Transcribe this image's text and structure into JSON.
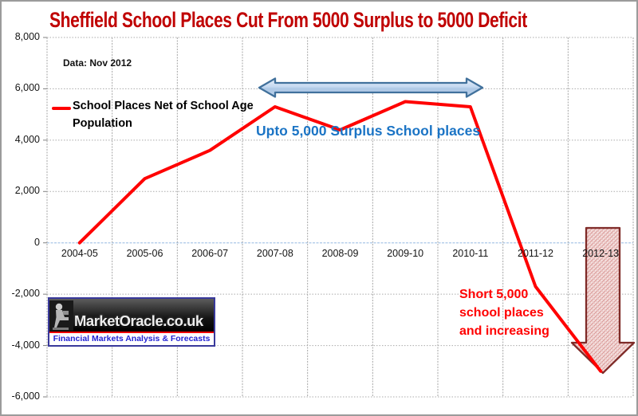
{
  "title": "Sheffield School Places Cut From 5000 Surplus to 5000 Deficit",
  "data_note": "Data: Nov 2012",
  "legend": {
    "series_label": "School Places Net of School Age Population",
    "swatch_color": "#FF0000"
  },
  "annotations": {
    "surplus_label": "Upto 5,000 Surplus School places",
    "surplus_color": "#1B74C5",
    "deficit_label": "Short 5,000\nschool places\nand increasing",
    "deficit_color": "#FF0000"
  },
  "logo": {
    "name": "MarketOracle.co.uk",
    "tagline": "Financial Markets Analysis & Forecasts"
  },
  "colors": {
    "title": "#C00000",
    "series_line": "#FF0000",
    "zero_line": "#A9C6E8",
    "gridline": "#ABABAB",
    "blue_arrow_border": "#41719C",
    "blue_arrow_fill": "#C5D9F1",
    "red_arrow_border": "#7F2B28",
    "red_arrow_fill": "#F5E0DF"
  },
  "chart_data": {
    "type": "line",
    "title": "Sheffield School Places Cut From 5000 Surplus to 5000 Deficit",
    "categories": [
      "2004-05",
      "2005-06",
      "2006-07",
      "2007-08",
      "2008-09",
      "2009-10",
      "2010-11",
      "2011-12",
      "2012-13"
    ],
    "series": [
      {
        "name": "School Places Net of School Age Population",
        "color": "#FF0000",
        "values": [
          0,
          2500,
          3600,
          5300,
          4400,
          5500,
          5300,
          -1700,
          -5000
        ]
      }
    ],
    "ylim": [
      -6000,
      8000
    ],
    "ytick_step": 2000,
    "grid": true,
    "legend_position": "upper-left",
    "annotations": [
      "Upto 5,000 Surplus School places (spanning 2007-08 to 2010-11)",
      "Short 5,000 school places and increasing (2012-13)"
    ]
  }
}
